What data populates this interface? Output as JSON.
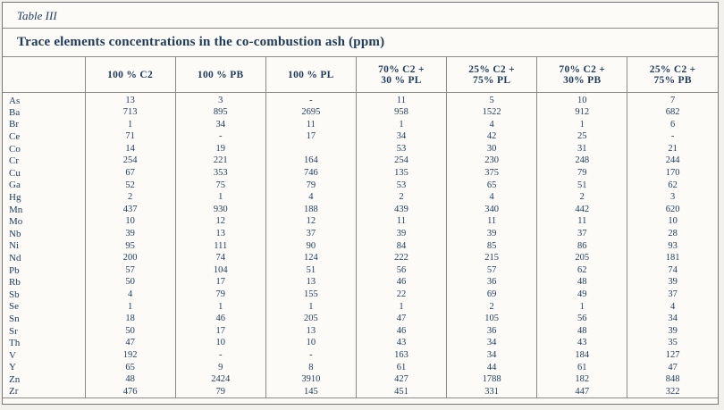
{
  "table_label": "Table III",
  "title": "Trace elements concentrations in the co-combustion ash (ppm)",
  "table": {
    "columns": [
      "",
      "100 % C2",
      "100 % PB",
      "100 % PL",
      "70% C2 +\n30 % PL",
      "25% C2 +\n75% PL",
      "70% C2 +\n30% PB",
      "25% C2 +\n75% PB"
    ],
    "rows": [
      {
        "element": "As",
        "values": [
          "13",
          "3",
          "-",
          "11",
          "5",
          "10",
          "7"
        ]
      },
      {
        "element": "Ba",
        "values": [
          "713",
          "895",
          "2695",
          "958",
          "1522",
          "912",
          "682"
        ]
      },
      {
        "element": "Br",
        "values": [
          "1",
          "34",
          "11",
          "1",
          "4",
          "1",
          "6"
        ]
      },
      {
        "element": "Ce",
        "values": [
          "71",
          "-",
          "17",
          "34",
          "42",
          "25",
          "-"
        ]
      },
      {
        "element": "Co",
        "values": [
          "14",
          "19",
          "",
          "53",
          "30",
          "31",
          "21"
        ]
      },
      {
        "element": "Cr",
        "values": [
          "254",
          "221",
          "164",
          "254",
          "230",
          "248",
          "244"
        ]
      },
      {
        "element": "Cu",
        "values": [
          "67",
          "353",
          "746",
          "135",
          "375",
          "79",
          "170"
        ]
      },
      {
        "element": "Ga",
        "values": [
          "52",
          "75",
          "79",
          "53",
          "65",
          "51",
          "62"
        ]
      },
      {
        "element": "Hg",
        "values": [
          "2",
          "1",
          "4",
          "2",
          "4",
          "2",
          "3"
        ]
      },
      {
        "element": "Mn",
        "values": [
          "437",
          "930",
          "188",
          "439",
          "340",
          "442",
          "620"
        ]
      },
      {
        "element": "Mo",
        "values": [
          "10",
          "12",
          "12",
          "11",
          "11",
          "11",
          "10"
        ]
      },
      {
        "element": "Nb",
        "values": [
          "39",
          "13",
          "37",
          "39",
          "39",
          "37",
          "28"
        ]
      },
      {
        "element": "Ni",
        "values": [
          "95",
          "111",
          "90",
          "84",
          "85",
          "86",
          "93"
        ]
      },
      {
        "element": "Nd",
        "values": [
          "200",
          "74",
          "124",
          "222",
          "215",
          "205",
          "181"
        ]
      },
      {
        "element": "Pb",
        "values": [
          "57",
          "104",
          "51",
          "56",
          "57",
          "62",
          "74"
        ]
      },
      {
        "element": "Rb",
        "values": [
          "50",
          "17",
          "13",
          "46",
          "36",
          "48",
          "39"
        ]
      },
      {
        "element": "Sb",
        "values": [
          "4",
          "79",
          "155",
          "22",
          "69",
          "49",
          "37"
        ]
      },
      {
        "element": "Se",
        "values": [
          "1",
          "1",
          "1",
          "1",
          "2",
          "1",
          "4"
        ]
      },
      {
        "element": "Sn",
        "values": [
          "18",
          "46",
          "205",
          "47",
          "105",
          "56",
          "34"
        ]
      },
      {
        "element": "Sr",
        "values": [
          "50",
          "17",
          "13",
          "46",
          "36",
          "48",
          "39"
        ]
      },
      {
        "element": "Th",
        "values": [
          "47",
          "10",
          "10",
          "43",
          "34",
          "43",
          "35"
        ]
      },
      {
        "element": "V",
        "values": [
          "192",
          "-",
          "-",
          "163",
          "34",
          "184",
          "127"
        ]
      },
      {
        "element": "Y",
        "values": [
          "65",
          "9",
          "8",
          "61",
          "44",
          "61",
          "47"
        ]
      },
      {
        "element": "Zn",
        "values": [
          "48",
          "2424",
          "3910",
          "427",
          "1788",
          "182",
          "848"
        ]
      },
      {
        "element": "Zr",
        "values": [
          "476",
          "79",
          "145",
          "451",
          "331",
          "447",
          "322"
        ]
      }
    ]
  },
  "colors": {
    "text": "#1d3a5c",
    "border": "#8a8a8a",
    "paper": "#fcfbf7"
  }
}
